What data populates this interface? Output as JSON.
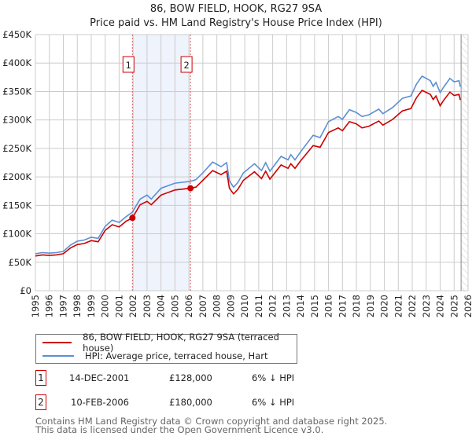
{
  "title": "86, BOW FIELD, HOOK, RG27 9SA",
  "subtitle": "Price paid vs. HM Land Registry's House Price Index (HPI)",
  "colors": {
    "property": "#cc0000",
    "hpi": "#5b8fd4",
    "grid": "#cccccc",
    "band": "#eef3fc"
  },
  "chart_data": {
    "type": "line",
    "title": "86, BOW FIELD, HOOK, RG27 9SA",
    "subtitle": "Price paid vs. HM Land Registry's House Price Index (HPI)",
    "xlabel": "",
    "ylabel": "",
    "xlim": [
      1995,
      2026
    ],
    "ylim": [
      0,
      450000
    ],
    "grid": true,
    "legend_position": "below",
    "x_ticks": [
      "1995",
      "1996",
      "1997",
      "1998",
      "1999",
      "2000",
      "2001",
      "2002",
      "2003",
      "2004",
      "2005",
      "2006",
      "2007",
      "2008",
      "2009",
      "2010",
      "2011",
      "2012",
      "2013",
      "2014",
      "2015",
      "2016",
      "2017",
      "2018",
      "2019",
      "2020",
      "2021",
      "2022",
      "2023",
      "2024",
      "2025",
      "2026"
    ],
    "y_ticks": [
      {
        "value": 0,
        "label": "£0"
      },
      {
        "value": 50000,
        "label": "£50K"
      },
      {
        "value": 100000,
        "label": "£100K"
      },
      {
        "value": 150000,
        "label": "£150K"
      },
      {
        "value": 200000,
        "label": "£200K"
      },
      {
        "value": 250000,
        "label": "£250K"
      },
      {
        "value": 300000,
        "label": "£300K"
      },
      {
        "value": 350000,
        "label": "£350K"
      },
      {
        "value": 400000,
        "label": "£400K"
      },
      {
        "value": 450000,
        "label": "£450K"
      }
    ],
    "x": [
      1995.0,
      1995.5,
      1996.0,
      1996.5,
      1997.0,
      1997.5,
      1998.0,
      1998.5,
      1999.0,
      1999.5,
      2000.0,
      2000.5,
      2001.0,
      2001.5,
      2001.95,
      2002.5,
      2003.0,
      2003.3,
      2004.0,
      2005.0,
      2006.1,
      2006.5,
      2007.0,
      2007.7,
      2008.3,
      2008.7,
      2008.9,
      2009.2,
      2009.5,
      2009.9,
      2010.7,
      2011.2,
      2011.5,
      2011.8,
      2012.6,
      2013.1,
      2013.3,
      2013.6,
      2014.0,
      2014.9,
      2015.4,
      2016.0,
      2016.7,
      2017.0,
      2017.5,
      2018.0,
      2018.4,
      2018.9,
      2019.6,
      2019.9,
      2020.6,
      2021.3,
      2021.9,
      2022.3,
      2022.7,
      2023.3,
      2023.5,
      2023.7,
      2024.0,
      2024.2,
      2024.7,
      2025.0,
      2025.35,
      2025.45
    ],
    "series": [
      {
        "name": "86, BOW FIELD, HOOK, RG27 9SA (terraced house)",
        "color": "#cc0000",
        "values": [
          61000,
          63000,
          62000,
          63000,
          65000,
          75000,
          81000,
          83000,
          88000,
          86000,
          106000,
          116000,
          112000,
          122000,
          128000,
          151000,
          157000,
          151000,
          168000,
          177000,
          180000,
          182000,
          194000,
          211000,
          204000,
          210000,
          180000,
          170000,
          178000,
          194000,
          209000,
          197000,
          210000,
          196000,
          221000,
          215000,
          223000,
          215000,
          228000,
          255000,
          252000,
          278000,
          286000,
          281000,
          297000,
          293000,
          286000,
          289000,
          298000,
          291000,
          301000,
          316000,
          320000,
          339000,
          352000,
          345000,
          336000,
          342000,
          325000,
          333000,
          349000,
          343000,
          345000,
          335000
        ]
      },
      {
        "name": "HPI: Average price, terraced house, Hart",
        "color": "#5b8fd4",
        "values": [
          65000,
          67000,
          66000,
          67000,
          69000,
          80000,
          87000,
          89000,
          94000,
          92000,
          113000,
          124000,
          120000,
          130000,
          138000,
          161000,
          168000,
          161000,
          180000,
          189000,
          192000,
          195000,
          207000,
          226000,
          218000,
          225000,
          193000,
          182000,
          190000,
          207000,
          223000,
          211000,
          225000,
          210000,
          236000,
          230000,
          239000,
          230000,
          244000,
          273000,
          269000,
          297000,
          306000,
          301000,
          318000,
          313000,
          306000,
          309000,
          319000,
          311000,
          322000,
          338000,
          342000,
          363000,
          377000,
          369000,
          359000,
          366000,
          348000,
          356000,
          373000,
          367000,
          369000,
          358000
        ]
      }
    ],
    "annotations": [
      {
        "label": "1",
        "x": 2001.95,
        "value": 128000
      },
      {
        "label": "2",
        "x": 2006.11,
        "value": 180000
      }
    ],
    "forecast_hatch_from": 2025.5
  },
  "legend": [
    {
      "label": "86, BOW FIELD, HOOK, RG27 9SA (terraced house)"
    },
    {
      "label": "HPI: Average price, terraced house, Hart"
    }
  ],
  "transactions": [
    {
      "num": "1",
      "date": "14-DEC-2001",
      "price": "£128,000",
      "hpi": "6% ↓ HPI"
    },
    {
      "num": "2",
      "date": "10-FEB-2006",
      "price": "£180,000",
      "hpi": "6% ↓ HPI"
    }
  ],
  "footer": {
    "line1": "Contains HM Land Registry data © Crown copyright and database right 2025.",
    "line2": "This data is licensed under the Open Government Licence v3.0."
  }
}
